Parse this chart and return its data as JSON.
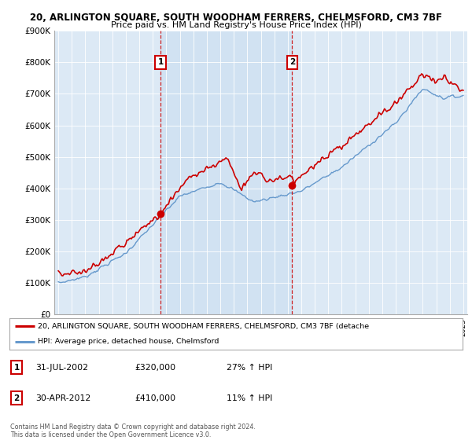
{
  "title_line1": "20, ARLINGTON SQUARE, SOUTH WOODHAM FERRERS, CHELMSFORD, CM3 7BF",
  "title_line2": "Price paid vs. HM Land Registry's House Price Index (HPI)",
  "ylabel_values": [
    "£0",
    "£100K",
    "£200K",
    "£300K",
    "£400K",
    "£500K",
    "£600K",
    "£700K",
    "£800K",
    "£900K"
  ],
  "ylim": [
    0,
    900000
  ],
  "yticks": [
    0,
    100000,
    200000,
    300000,
    400000,
    500000,
    600000,
    700000,
    800000,
    900000
  ],
  "x_start_year": 1995,
  "x_end_year": 2025,
  "bg_color": "#dce9f5",
  "shade_color": "#d0e4f7",
  "red_color": "#cc0000",
  "blue_color": "#6699cc",
  "marker1": {
    "year": 2002.58,
    "value": 320000,
    "label": "1",
    "date": "31-JUL-2002",
    "price": "£320,000",
    "pct": "27% ↑ HPI"
  },
  "marker2": {
    "year": 2012.33,
    "value": 410000,
    "label": "2",
    "date": "30-APR-2012",
    "price": "£410,000",
    "pct": "11% ↑ HPI"
  },
  "legend_label_red": "20, ARLINGTON SQUARE, SOUTH WOODHAM FERRERS, CHELMSFORD, CM3 7BF (detache",
  "legend_label_blue": "HPI: Average price, detached house, Chelmsford",
  "footer_line1": "Contains HM Land Registry data © Crown copyright and database right 2024.",
  "footer_line2": "This data is licensed under the Open Government Licence v3.0."
}
